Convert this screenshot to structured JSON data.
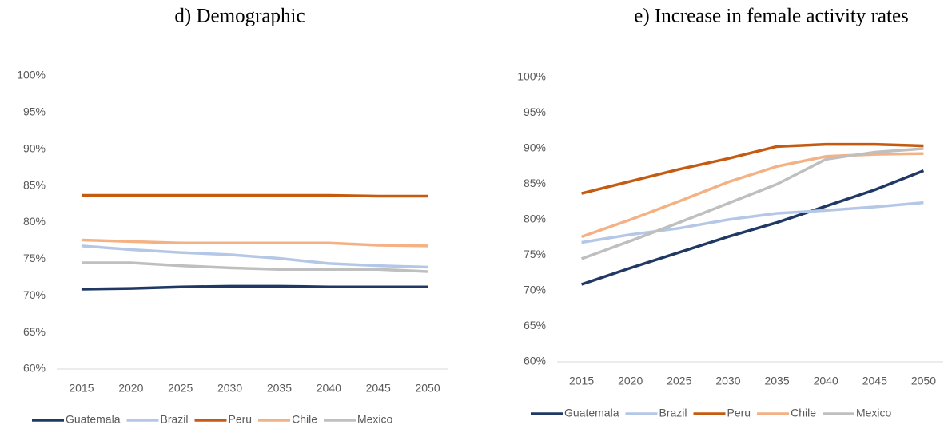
{
  "chart_data": [
    {
      "type": "line",
      "title": "d)  Demographic",
      "categories": [
        "2015",
        "2020",
        "2025",
        "2030",
        "2035",
        "2040",
        "2045",
        "2050"
      ],
      "ylim": [
        60,
        100
      ],
      "yticks": [
        {
          "value": 60,
          "label": "60%"
        },
        {
          "value": 65,
          "label": "65%"
        },
        {
          "value": 70,
          "label": "70%"
        },
        {
          "value": 75,
          "label": "75%"
        },
        {
          "value": 80,
          "label": "80%"
        },
        {
          "value": 85,
          "label": "85%"
        },
        {
          "value": 90,
          "label": "90%"
        },
        {
          "value": 95,
          "label": "95%"
        },
        {
          "value": 100,
          "label": "100%"
        }
      ],
      "legend": "bottom",
      "series": [
        {
          "name": "Guatemala",
          "color": "#1f3864",
          "values": [
            70.9,
            71.0,
            71.2,
            71.3,
            71.3,
            71.2,
            71.2,
            71.2
          ]
        },
        {
          "name": "Brazil",
          "color": "#b4c7e7",
          "values": [
            76.8,
            76.3,
            75.9,
            75.6,
            75.1,
            74.4,
            74.1,
            73.9
          ]
        },
        {
          "name": "Peru",
          "color": "#c55a11",
          "values": [
            83.7,
            83.7,
            83.7,
            83.7,
            83.7,
            83.7,
            83.6,
            83.6
          ]
        },
        {
          "name": "Chile",
          "color": "#f4b183",
          "values": [
            77.6,
            77.4,
            77.2,
            77.2,
            77.2,
            77.2,
            76.9,
            76.8
          ]
        },
        {
          "name": "Mexico",
          "color": "#bfbfbf",
          "values": [
            74.5,
            74.5,
            74.1,
            73.8,
            73.6,
            73.6,
            73.6,
            73.3
          ]
        }
      ]
    },
    {
      "type": "line",
      "title": "e)  Increase in female activity rates",
      "categories": [
        "2015",
        "2020",
        "2025",
        "2030",
        "2035",
        "2040",
        "2045",
        "2050"
      ],
      "ylim": [
        60,
        100
      ],
      "yticks": [
        {
          "value": 60,
          "label": "60%"
        },
        {
          "value": 65,
          "label": "65%"
        },
        {
          "value": 70,
          "label": "70%"
        },
        {
          "value": 75,
          "label": "75%"
        },
        {
          "value": 80,
          "label": "80%"
        },
        {
          "value": 85,
          "label": "85%"
        },
        {
          "value": 90,
          "label": "90%"
        },
        {
          "value": 95,
          "label": "95%"
        },
        {
          "value": 100,
          "label": "100%"
        }
      ],
      "legend": "bottom",
      "series": [
        {
          "name": "Guatemala",
          "color": "#1f3864",
          "values": [
            70.9,
            73.2,
            75.4,
            77.6,
            79.6,
            81.9,
            84.2,
            86.9
          ]
        },
        {
          "name": "Brazil",
          "color": "#b4c7e7",
          "values": [
            76.8,
            77.9,
            78.8,
            80.0,
            80.9,
            81.3,
            81.8,
            82.4
          ]
        },
        {
          "name": "Peru",
          "color": "#c55a11",
          "values": [
            83.7,
            85.4,
            87.1,
            88.6,
            90.3,
            90.6,
            90.6,
            90.4
          ]
        },
        {
          "name": "Chile",
          "color": "#f4b183",
          "values": [
            77.6,
            80.0,
            82.6,
            85.3,
            87.5,
            88.9,
            89.2,
            89.3
          ]
        },
        {
          "name": "Mexico",
          "color": "#bfbfbf",
          "values": [
            74.5,
            77.0,
            79.6,
            82.3,
            85.0,
            88.5,
            89.5,
            90.0
          ]
        }
      ]
    }
  ]
}
